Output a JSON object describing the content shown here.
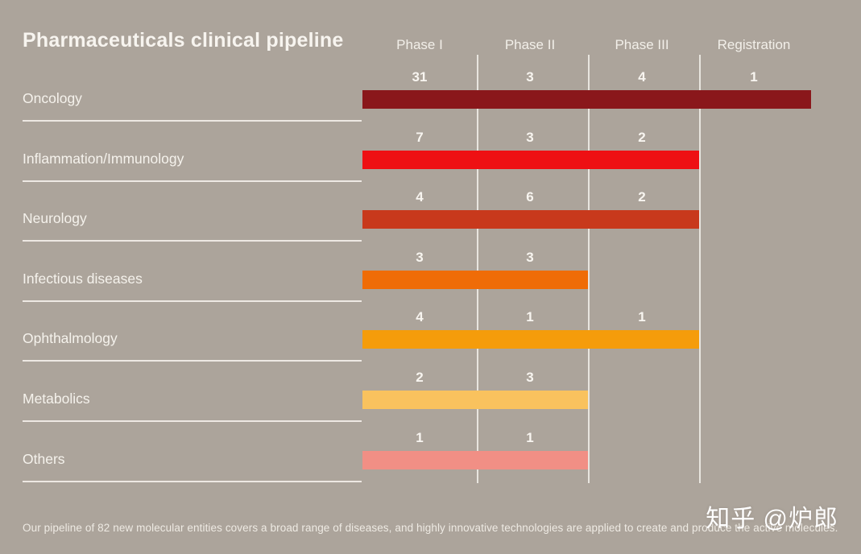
{
  "page": {
    "title": "Pharmaceuticals clinical pipeline",
    "footer": "Our pipeline of 82 new molecular entities covers a broad range of diseases, and highly innovative technologies are applied to create and produce the active molecules.",
    "watermark": "知乎 @炉郎",
    "colors": {
      "background": "#aca49b",
      "text": "#f7f4ef",
      "divider": "#f3efe9"
    }
  },
  "chart_data": {
    "type": "bar",
    "title": "Pharmaceuticals clinical pipeline",
    "orientation": "horizontal",
    "note": "Each bar spans the clinical phases the category has candidates in; numbers above each segment are candidate counts per phase.",
    "phases": [
      "Phase I",
      "Phase II",
      "Phase III",
      "Registration"
    ],
    "rows": [
      {
        "category": "Oncology",
        "values": [
          31,
          3,
          4,
          1
        ],
        "color": "#8a171b"
      },
      {
        "category": "Inflammation/Immunology",
        "values": [
          7,
          3,
          2
        ],
        "color": "#ee1013"
      },
      {
        "category": "Neurology",
        "values": [
          4,
          6,
          2
        ],
        "color": "#c8391c"
      },
      {
        "category": "Infectious diseases",
        "values": [
          3,
          3
        ],
        "color": "#ef6c07"
      },
      {
        "category": "Ophthalmology",
        "values": [
          4,
          1,
          1
        ],
        "color": "#f59c0b"
      },
      {
        "category": "Metabolics",
        "values": [
          2,
          3
        ],
        "color": "#f9c25e"
      },
      {
        "category": "Others",
        "values": [
          1,
          1
        ],
        "color": "#f18f85"
      }
    ],
    "legend_position": "none",
    "grid": "vertical phase dividers only"
  }
}
